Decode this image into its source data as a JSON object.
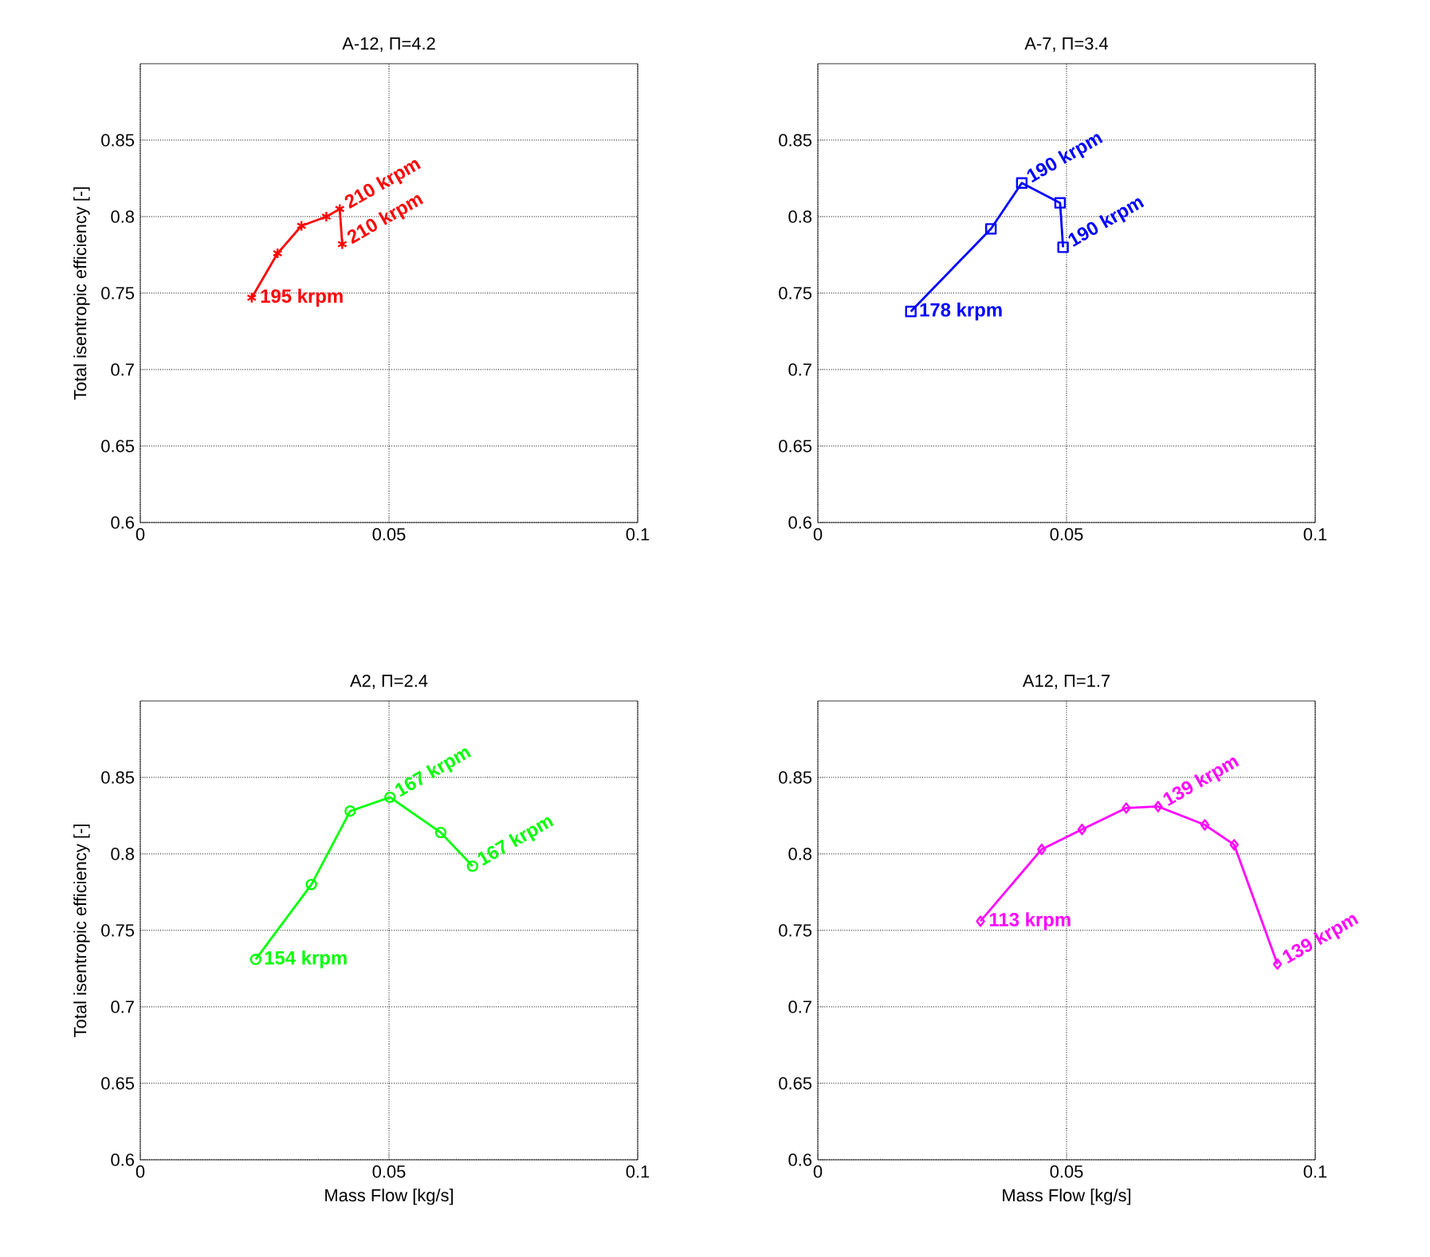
{
  "chart_data": [
    {
      "type": "line",
      "title": "A-12, Π=4.2",
      "ylabel": "Total isentropic efficiency [-]",
      "xlim": [
        0,
        0.1
      ],
      "ylim": [
        0.6,
        0.9
      ],
      "xticks": [
        0,
        0.05,
        0.1
      ],
      "yticks": [
        0.6,
        0.65,
        0.7,
        0.75,
        0.8,
        0.85
      ],
      "grid": true,
      "marker": "cross",
      "line_style": "solid",
      "x": [
        0.0224,
        0.0276,
        0.0324,
        0.0374,
        0.0401,
        0.0406
      ],
      "series": [
        {
          "color": "#ff0000",
          "values": [
            0.747,
            0.776,
            0.794,
            0.8,
            0.805,
            0.782
          ]
        }
      ],
      "annotations": [
        {
          "text": "195 krpm",
          "x": 0.0224,
          "y": 0.747
        },
        {
          "text": "210 krpm",
          "x": 0.0401,
          "y": 0.805
        },
        {
          "text": "210 krpm",
          "x": 0.0406,
          "y": 0.782
        }
      ]
    },
    {
      "type": "line",
      "title": "A-7, Π=3.4",
      "xlim": [
        0,
        0.1
      ],
      "ylim": [
        0.6,
        0.9
      ],
      "xticks": [
        0,
        0.05,
        0.1
      ],
      "yticks": [
        0.6,
        0.65,
        0.7,
        0.75,
        0.8,
        0.85
      ],
      "grid": true,
      "marker": "square",
      "line_style": "solid",
      "x": [
        0.0187,
        0.0348,
        0.041,
        0.0487,
        0.0493
      ],
      "series": [
        {
          "color": "#0000ff",
          "values": [
            0.738,
            0.792,
            0.822,
            0.809,
            0.78
          ]
        }
      ],
      "annotations": [
        {
          "text": "178 krpm",
          "x": 0.0187,
          "y": 0.738
        },
        {
          "text": "190 krpm",
          "x": 0.041,
          "y": 0.822
        },
        {
          "text": "190 krpm",
          "x": 0.0493,
          "y": 0.78
        }
      ]
    },
    {
      "type": "line",
      "title": "A2, Π=2.4",
      "xlabel": "Mass Flow [kg/s]",
      "ylabel": "Total isentropic efficiency [-]",
      "xlim": [
        0,
        0.1
      ],
      "ylim": [
        0.6,
        0.9
      ],
      "xticks": [
        0,
        0.05,
        0.1
      ],
      "yticks": [
        0.6,
        0.65,
        0.7,
        0.75,
        0.8,
        0.85
      ],
      "grid": true,
      "marker": "circle",
      "line_style": "solid",
      "x": [
        0.0232,
        0.0344,
        0.0422,
        0.0502,
        0.0604,
        0.0668
      ],
      "series": [
        {
          "color": "#00ff00",
          "values": [
            0.731,
            0.78,
            0.828,
            0.837,
            0.814,
            0.792
          ]
        }
      ],
      "annotations": [
        {
          "text": "154 krpm",
          "x": 0.0232,
          "y": 0.731
        },
        {
          "text": "167 krpm",
          "x": 0.0502,
          "y": 0.837
        },
        {
          "text": "167 krpm",
          "x": 0.0668,
          "y": 0.792
        }
      ]
    },
    {
      "type": "line",
      "title": "A12, Π=1.7",
      "xlabel": "Mass Flow [kg/s]",
      "xlim": [
        0,
        0.1
      ],
      "ylim": [
        0.6,
        0.9
      ],
      "xticks": [
        0,
        0.05,
        0.1
      ],
      "yticks": [
        0.6,
        0.65,
        0.7,
        0.75,
        0.8,
        0.85
      ],
      "grid": true,
      "marker": "diamond",
      "line_style": "solid",
      "x": [
        0.0327,
        0.045,
        0.0531,
        0.062,
        0.0684,
        0.0778,
        0.0837,
        0.0924
      ],
      "series": [
        {
          "color": "#ff00ff",
          "values": [
            0.756,
            0.803,
            0.816,
            0.83,
            0.831,
            0.819,
            0.806,
            0.728
          ]
        }
      ],
      "annotations": [
        {
          "text": "113 krpm",
          "x": 0.0327,
          "y": 0.756
        },
        {
          "text": "139 krpm",
          "x": 0.0684,
          "y": 0.831
        },
        {
          "text": "139 krpm",
          "x": 0.0924,
          "y": 0.728
        }
      ]
    }
  ]
}
